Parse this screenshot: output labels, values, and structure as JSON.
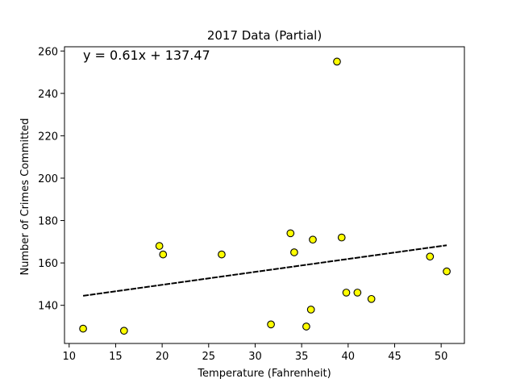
{
  "chart_data": {
    "type": "scatter",
    "title": "2017 Data (Partial)",
    "xlabel": "Temperature (Fahrenheit)",
    "ylabel": "Number of Crimes Committed",
    "xlim": [
      9.5,
      52.5
    ],
    "ylim": [
      122,
      262
    ],
    "xticks": [
      10,
      15,
      20,
      25,
      30,
      35,
      40,
      45,
      50
    ],
    "yticks": [
      140,
      160,
      180,
      200,
      220,
      240,
      260
    ],
    "grid": false,
    "marker_color": "#ffff00",
    "marker_edge_color": "#000000",
    "line_color": "#000000",
    "points": [
      {
        "x": 11.5,
        "y": 129
      },
      {
        "x": 15.9,
        "y": 128
      },
      {
        "x": 19.7,
        "y": 168
      },
      {
        "x": 20.1,
        "y": 164
      },
      {
        "x": 26.4,
        "y": 164
      },
      {
        "x": 31.7,
        "y": 131
      },
      {
        "x": 33.8,
        "y": 174
      },
      {
        "x": 34.2,
        "y": 165
      },
      {
        "x": 35.5,
        "y": 130
      },
      {
        "x": 36.0,
        "y": 138
      },
      {
        "x": 36.2,
        "y": 171
      },
      {
        "x": 38.8,
        "y": 255
      },
      {
        "x": 39.3,
        "y": 172
      },
      {
        "x": 39.8,
        "y": 146
      },
      {
        "x": 41.0,
        "y": 146
      },
      {
        "x": 42.5,
        "y": 143
      },
      {
        "x": 48.8,
        "y": 163
      },
      {
        "x": 50.6,
        "y": 156
      }
    ],
    "regression": {
      "slope": 0.61,
      "intercept": 137.47,
      "x_range": [
        11.5,
        50.6
      ],
      "equation": "y = 0.61x + 137.47"
    }
  }
}
